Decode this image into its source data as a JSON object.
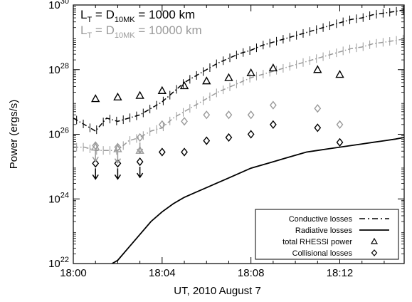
{
  "chart_data": {
    "type": "line",
    "ylog": true,
    "xlim": [
      0,
      14.9
    ],
    "ylim": [
      22,
      30
    ],
    "xlabel": "UT, 2010 August 7",
    "ylabel": "Power (ergs/s)",
    "xticks": [
      {
        "value": 0,
        "label": "18:00"
      },
      {
        "value": 4,
        "label": "18:04"
      },
      {
        "value": 8,
        "label": "18:08"
      },
      {
        "value": 12,
        "label": "18:12"
      }
    ],
    "yticks": [
      {
        "value": 22,
        "base": "10",
        "exp": "22"
      },
      {
        "value": 24,
        "base": "10",
        "exp": "24"
      },
      {
        "value": 26,
        "base": "10",
        "exp": "26"
      },
      {
        "value": 28,
        "base": "10",
        "exp": "28"
      },
      {
        "value": 30,
        "base": "10",
        "exp": "30"
      }
    ],
    "annotations": [
      {
        "id": "ann1",
        "pre": "L",
        "sub1": "T",
        "mid": " = D",
        "sub2": "10MK",
        "post": " = 1000 km",
        "color": "#000000"
      },
      {
        "id": "ann2",
        "pre": "L",
        "sub1": "T",
        "mid": " = D",
        "sub2": "10MK",
        "post": " = 10000 km",
        "color": "#9a9a9a"
      }
    ],
    "legend": {
      "placement": "bottom-right",
      "entries": [
        {
          "label": "Conductive losses",
          "symbol": "dash-dot"
        },
        {
          "label": "Radiative losses",
          "symbol": "solid"
        },
        {
          "label": "total RHESSI power",
          "symbol": "triangle"
        },
        {
          "label": "Collisional losses",
          "symbol": "diamond"
        }
      ]
    },
    "series": [
      {
        "name": "Conductive losses",
        "variant": "1000 km",
        "color": "#000000",
        "x": [
          0,
          0.5,
          1,
          1.5,
          2,
          2.5,
          3,
          3.5,
          4,
          4.5,
          5,
          5.5,
          6,
          6.5,
          7,
          7.5,
          8,
          8.5,
          9,
          9.5,
          10,
          10.5,
          11,
          11.5,
          12,
          12.5,
          13,
          13.5,
          14,
          14.5,
          14.9
        ],
        "y": [
          26.5,
          26.3,
          26.1,
          26.5,
          26.4,
          26.5,
          26.6,
          26.8,
          27.0,
          27.3,
          27.6,
          27.8,
          28.0,
          28.2,
          28.35,
          28.5,
          28.6,
          28.75,
          28.85,
          28.95,
          29.05,
          29.15,
          29.25,
          29.35,
          29.45,
          29.55,
          29.6,
          29.7,
          29.75,
          29.8,
          29.85
        ]
      },
      {
        "name": "Conductive losses",
        "variant": "10000 km",
        "color": "#9a9a9a",
        "x": [
          0,
          0.5,
          1,
          1.5,
          2,
          2.5,
          3,
          3.5,
          4,
          4.5,
          5,
          5.5,
          6,
          6.5,
          7,
          7.5,
          8,
          8.5,
          9,
          9.5,
          10,
          10.5,
          11,
          11.5,
          12,
          12.5,
          13,
          13.5,
          14,
          14.5,
          14.9
        ],
        "y": [
          25.6,
          25.6,
          25.5,
          25.5,
          25.5,
          25.8,
          25.9,
          26.1,
          26.2,
          26.5,
          26.7,
          26.9,
          27.1,
          27.3,
          27.45,
          27.6,
          27.75,
          27.85,
          27.95,
          28.05,
          28.15,
          28.25,
          28.35,
          28.45,
          28.55,
          28.65,
          28.7,
          28.8,
          28.85,
          28.9,
          28.95
        ]
      },
      {
        "name": "Radiative losses",
        "color": "#000000",
        "x": [
          0,
          0.5,
          1,
          1.5,
          2,
          2.5,
          3,
          3.5,
          4,
          4.5,
          5,
          5.5,
          6,
          6.5,
          7,
          7.5,
          8,
          8.5,
          9,
          9.5,
          10,
          10.5,
          11,
          11.5,
          12,
          12.5,
          13,
          13.5,
          14,
          14.5,
          14.9
        ],
        "y": [
          21.8,
          21.9,
          21.85,
          21.9,
          22.1,
          22.5,
          22.9,
          23.3,
          23.6,
          23.85,
          24.05,
          24.2,
          24.35,
          24.5,
          24.65,
          24.8,
          24.95,
          25.05,
          25.15,
          25.25,
          25.35,
          25.45,
          25.5,
          25.55,
          25.6,
          25.65,
          25.7,
          25.75,
          25.8,
          25.85,
          25.9
        ]
      },
      {
        "name": "total RHESSI power",
        "variant": "1000 km",
        "color": "#000000",
        "marker": "triangle",
        "x": [
          1,
          2,
          3,
          4,
          5,
          6,
          7,
          8,
          9,
          11,
          12
        ],
        "y": [
          27.1,
          27.15,
          27.2,
          27.35,
          27.5,
          27.65,
          27.75,
          27.9,
          28.05,
          28.0,
          27.85
        ]
      },
      {
        "name": "total RHESSI power",
        "variant": "10000 km",
        "color": "#9a9a9a",
        "marker": "triangle",
        "x": [
          1,
          2,
          3
        ],
        "y": [
          25.6,
          25.55,
          25.5
        ]
      },
      {
        "name": "Collisional losses",
        "variant": "10000 km",
        "color": "#9a9a9a",
        "marker": "diamond",
        "x": [
          1,
          2,
          3,
          4,
          5,
          6,
          7,
          8,
          9,
          11,
          12
        ],
        "y": [
          25.65,
          25.6,
          25.9,
          26.3,
          26.4,
          26.6,
          26.6,
          26.6,
          26.9,
          26.8,
          26.3
        ]
      },
      {
        "name": "Collisional losses",
        "variant": "1000 km",
        "color": "#000000",
        "marker": "diamond",
        "x": [
          1,
          2,
          3,
          4,
          5,
          6,
          7,
          8,
          9,
          11,
          12
        ],
        "y": [
          25.1,
          25.1,
          25.15,
          25.45,
          25.45,
          25.8,
          25.9,
          26.0,
          26.3,
          26.2,
          25.75
        ]
      }
    ],
    "upper_limits": [
      {
        "color": "#000000",
        "x": [
          1,
          2,
          3
        ],
        "y": [
          25.1,
          25.1,
          25.15
        ]
      },
      {
        "color": "#9a9a9a",
        "x": [
          1,
          2,
          3
        ],
        "y": [
          25.65,
          25.6,
          25.9
        ]
      }
    ]
  }
}
